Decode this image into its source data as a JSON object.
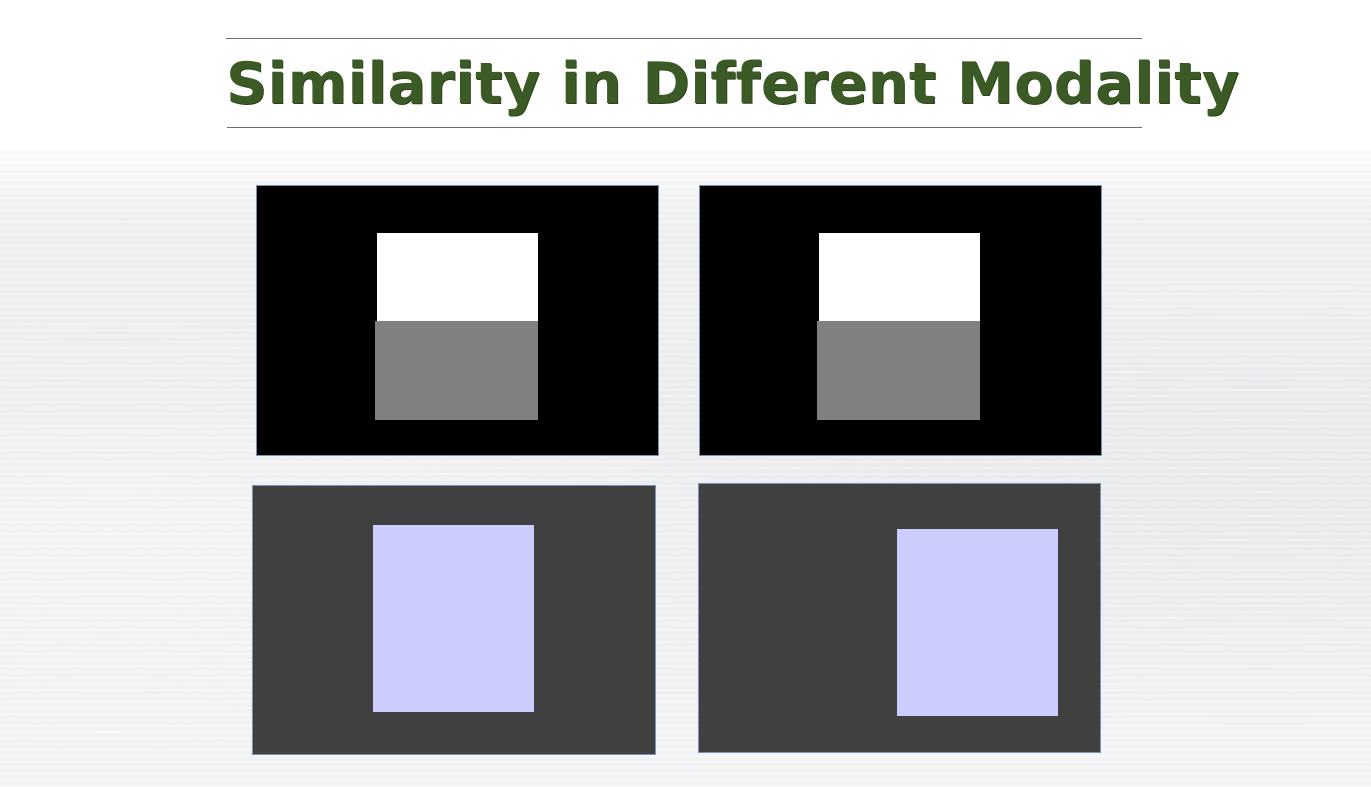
{
  "slide": {
    "title": "Similarity in Different Modality"
  },
  "colors": {
    "title": "#3b5a26",
    "panel_black": "#000000",
    "panel_dark_gray": "#404040",
    "block_white": "#ffffff",
    "block_gray": "#808080",
    "block_lavender": "#ccccff",
    "panel_border": "#7d92b4"
  }
}
